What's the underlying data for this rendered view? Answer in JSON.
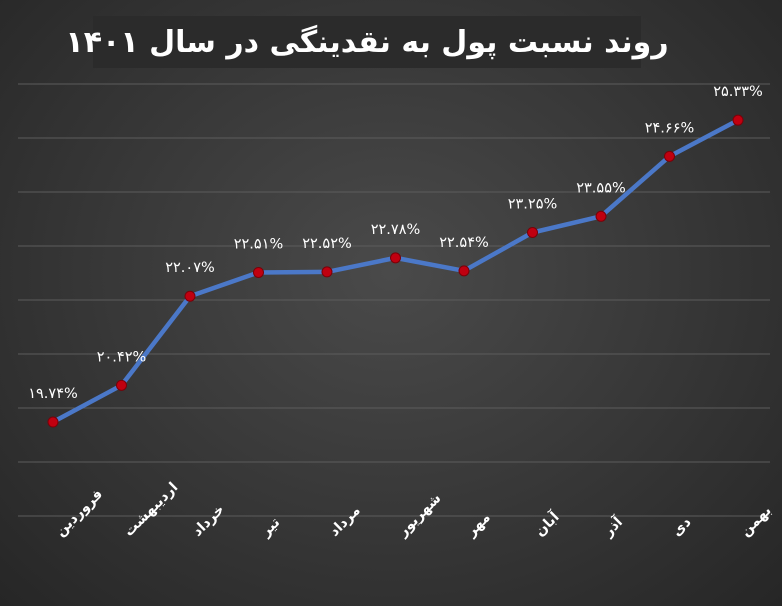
{
  "chart_data": {
    "type": "line",
    "title": "روند نسبت پول به نقدینگی در سال ۱۴۰۱",
    "categories": [
      "فروردین",
      "اردیبهشت",
      "خرداد",
      "تیر",
      "مرداد",
      "شهریور",
      "مهر",
      "آبان",
      "آذر",
      "دی",
      "بهمن"
    ],
    "values": [
      19.74,
      20.42,
      22.07,
      22.51,
      22.52,
      22.78,
      22.54,
      23.25,
      23.55,
      24.66,
      25.33
    ],
    "data_labels": [
      "۱۹.۷۴%",
      "۲۰.۴۲%",
      "۲۲.۰۷%",
      "۲۲.۵۱%",
      "۲۲.۵۲%",
      "۲۲.۷۸%",
      "۲۲.۵۴%",
      "۲۳.۲۵%",
      "۲۳.۵۵%",
      "۲۴.۶۶%",
      "۲۵.۳۳%"
    ],
    "xlabel": "",
    "ylabel": "",
    "ylim": [
      18,
      26
    ],
    "grid": true,
    "legend": "none",
    "line_color": "#4b78c8",
    "marker_color": "#c00010",
    "label_color": "#ffffff"
  }
}
